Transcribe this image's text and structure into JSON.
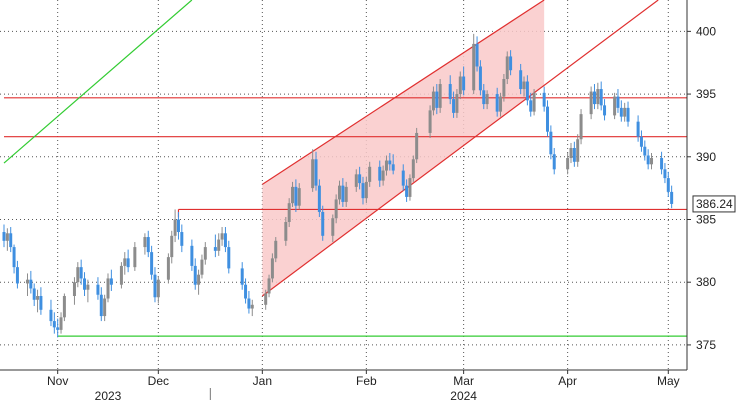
{
  "chart_data": {
    "type": "candlestick",
    "y_axis": {
      "position": "right",
      "ticks": [
        375,
        380,
        385,
        390,
        395,
        400
      ],
      "range": [
        373,
        402.5
      ]
    },
    "x_axis": {
      "months": [
        "Nov",
        "Dec",
        "Jan",
        "Feb",
        "Mar",
        "Apr",
        "May"
      ],
      "years": [
        "2023",
        "2024"
      ],
      "range": [
        "2023-10-16",
        "2024-05-03"
      ],
      "month_positions": [
        "2023-11-01",
        "2023-12-01",
        "2024-01-01",
        "2024-02-01",
        "2024-03-01",
        "2024-04-01",
        "2024-05-01"
      ],
      "year_positions": [
        "2023-11-16",
        "2024-03-01"
      ],
      "year_divider": "2024-01-01"
    },
    "price_label": {
      "value": "386.24",
      "y": 386.24
    },
    "horizontal_lines": [
      {
        "y": 394.7,
        "color": "#e03030",
        "from": "2023-10-16"
      },
      {
        "y": 391.6,
        "color": "#e03030",
        "from": "2023-10-16"
      },
      {
        "y": 385.8,
        "color": "#e03030",
        "from": "2023-12-07"
      },
      {
        "y": 375.7,
        "color": "#33cc33",
        "from": "2023-11-01"
      }
    ],
    "trend_line": {
      "color": "#33cc33",
      "points": [
        [
          "2023-10-16",
          389.5
        ],
        [
          "2023-12-11",
          402.5
        ]
      ]
    },
    "channel": {
      "fill": "#f9c9c9",
      "stroke": "#e03030",
      "upper": [
        [
          "2024-01-01",
          387.8
        ],
        [
          "2024-03-25",
          402.5
        ]
      ],
      "lower": [
        [
          "2024-01-01",
          378.9
        ],
        [
          "2024-04-28",
          402.5
        ]
      ],
      "shade_until": "2024-03-25"
    },
    "candles": [
      [
        "2023-10-16",
        384.0,
        384.6,
        382.8,
        383.3
      ],
      [
        "2023-10-17",
        383.3,
        384.3,
        382.5,
        383.9
      ],
      [
        "2023-10-18",
        383.9,
        384.4,
        382.4,
        382.8
      ],
      [
        "2023-10-19",
        382.8,
        383.0,
        380.7,
        381.2
      ],
      [
        "2023-10-20",
        381.2,
        381.7,
        379.5,
        379.9
      ],
      [
        "2023-10-23",
        379.9,
        380.7,
        378.9,
        380.2
      ],
      [
        "2023-10-24",
        380.2,
        380.9,
        379.1,
        379.5
      ],
      [
        "2023-10-25",
        379.5,
        379.9,
        378.1,
        378.6
      ],
      [
        "2023-10-26",
        378.6,
        379.4,
        377.6,
        378.9
      ],
      [
        "2023-10-27",
        378.9,
        379.6,
        377.4,
        377.8
      ],
      [
        "2023-10-30",
        377.8,
        378.6,
        376.5,
        376.9
      ],
      [
        "2023-10-31",
        376.9,
        377.6,
        375.9,
        376.4
      ],
      [
        "2023-11-01",
        376.4,
        377.1,
        375.6,
        376.2
      ],
      [
        "2023-11-02",
        376.2,
        377.6,
        375.9,
        377.2
      ],
      [
        "2023-11-03",
        377.2,
        379.1,
        376.9,
        378.9
      ],
      [
        "2023-11-06",
        378.9,
        380.4,
        378.2,
        380.0
      ],
      [
        "2023-11-07",
        380.0,
        381.6,
        379.6,
        381.2
      ],
      [
        "2023-11-08",
        381.2,
        381.8,
        379.8,
        380.3
      ],
      [
        "2023-11-09",
        380.3,
        380.8,
        378.9,
        379.4
      ],
      [
        "2023-11-10",
        379.4,
        380.2,
        378.4,
        379.8
      ],
      [
        "2023-11-13",
        379.8,
        380.4,
        378.6,
        379.0
      ],
      [
        "2023-11-14",
        379.0,
        379.6,
        376.9,
        377.3
      ],
      [
        "2023-11-15",
        377.3,
        379.0,
        376.9,
        378.7
      ],
      [
        "2023-11-16",
        378.7,
        380.7,
        378.4,
        380.3
      ],
      [
        "2023-11-17",
        380.3,
        381.0,
        379.3,
        379.8
      ],
      [
        "2023-11-20",
        379.8,
        381.6,
        379.5,
        381.3
      ],
      [
        "2023-11-21",
        381.3,
        382.4,
        380.6,
        381.9
      ],
      [
        "2023-11-22",
        381.9,
        382.6,
        380.8,
        381.2
      ],
      [
        "2023-11-24",
        381.2,
        383.2,
        380.9,
        382.8
      ],
      [
        "2023-11-27",
        382.8,
        383.9,
        382.2,
        383.6
      ],
      [
        "2023-11-28",
        383.6,
        384.1,
        382.0,
        382.4
      ],
      [
        "2023-11-29",
        382.4,
        382.9,
        380.2,
        380.6
      ],
      [
        "2023-11-30",
        380.6,
        381.2,
        378.4,
        378.8
      ],
      [
        "2023-12-01",
        378.8,
        380.5,
        378.3,
        380.2
      ],
      [
        "2023-12-04",
        380.2,
        382.3,
        379.9,
        382.0
      ],
      [
        "2023-12-05",
        382.0,
        384.1,
        381.5,
        383.7
      ],
      [
        "2023-12-06",
        383.7,
        385.8,
        383.2,
        385.0
      ],
      [
        "2023-12-07",
        385.0,
        385.6,
        383.4,
        384.0
      ],
      [
        "2023-12-08",
        384.0,
        384.6,
        382.4,
        382.9
      ],
      [
        "2023-12-11",
        382.9,
        383.4,
        380.9,
        381.3
      ],
      [
        "2023-12-12",
        381.3,
        381.9,
        379.4,
        379.8
      ],
      [
        "2023-12-13",
        379.8,
        381.0,
        379.0,
        380.6
      ],
      [
        "2023-12-14",
        380.6,
        382.2,
        380.3,
        381.8
      ],
      [
        "2023-12-15",
        381.8,
        383.2,
        381.4,
        382.8
      ],
      [
        "2023-12-18",
        382.8,
        383.8,
        382.0,
        382.5
      ],
      [
        "2023-12-19",
        382.5,
        383.9,
        382.1,
        383.4
      ],
      [
        "2023-12-20",
        383.4,
        384.4,
        382.9,
        383.9
      ],
      [
        "2023-12-21",
        383.9,
        384.4,
        382.4,
        382.8
      ],
      [
        "2023-12-22",
        382.8,
        383.3,
        380.7,
        381.1
      ],
      [
        "2023-12-26",
        381.1,
        381.6,
        379.4,
        379.8
      ],
      [
        "2023-12-27",
        379.8,
        380.3,
        378.3,
        378.7
      ],
      [
        "2023-12-28",
        378.7,
        379.3,
        377.5,
        377.9
      ],
      [
        "2023-12-29",
        377.9,
        378.6,
        377.3,
        378.2
      ],
      [
        "2024-01-02",
        378.2,
        379.4,
        377.8,
        379.1
      ],
      [
        "2024-01-03",
        379.1,
        380.6,
        378.8,
        380.3
      ],
      [
        "2024-01-04",
        380.3,
        382.3,
        380.0,
        381.9
      ],
      [
        "2024-01-05",
        381.9,
        383.6,
        381.6,
        383.3
      ],
      [
        "2024-01-08",
        383.3,
        385.2,
        382.9,
        384.8
      ],
      [
        "2024-01-09",
        384.8,
        386.7,
        384.4,
        386.3
      ],
      [
        "2024-01-10",
        386.3,
        388.0,
        386.0,
        387.6
      ],
      [
        "2024-01-11",
        387.6,
        388.2,
        385.6,
        386.1
      ],
      [
        "2024-01-12",
        386.1,
        387.9,
        385.8,
        387.5
      ],
      [
        "2024-01-16",
        387.5,
        390.6,
        387.2,
        389.8
      ],
      [
        "2024-01-17",
        389.8,
        390.4,
        387.3,
        387.7
      ],
      [
        "2024-01-18",
        387.7,
        388.2,
        385.2,
        385.6
      ],
      [
        "2024-01-19",
        385.6,
        386.1,
        383.3,
        383.7
      ],
      [
        "2024-01-22",
        383.7,
        385.4,
        383.2,
        385.1
      ],
      [
        "2024-01-23",
        385.1,
        387.0,
        384.7,
        386.6
      ],
      [
        "2024-01-24",
        386.6,
        388.1,
        386.2,
        387.7
      ],
      [
        "2024-01-25",
        387.7,
        388.3,
        386.0,
        386.4
      ],
      [
        "2024-01-26",
        386.4,
        388.0,
        386.0,
        387.6
      ],
      [
        "2024-01-29",
        387.6,
        389.0,
        387.2,
        388.6
      ],
      [
        "2024-01-30",
        388.6,
        389.2,
        387.4,
        387.9
      ],
      [
        "2024-01-31",
        387.9,
        388.4,
        386.2,
        386.7
      ],
      [
        "2024-02-01",
        386.7,
        388.4,
        386.3,
        388.0
      ],
      [
        "2024-02-02",
        388.0,
        389.6,
        387.6,
        389.2
      ],
      [
        "2024-02-05",
        389.2,
        389.7,
        387.6,
        388.1
      ],
      [
        "2024-02-06",
        388.1,
        389.3,
        387.7,
        388.9
      ],
      [
        "2024-02-07",
        388.9,
        390.1,
        388.5,
        389.7
      ],
      [
        "2024-02-08",
        389.7,
        390.3,
        388.9,
        389.4
      ],
      [
        "2024-02-09",
        389.4,
        390.2,
        388.6,
        388.9
      ],
      [
        "2024-02-12",
        388.9,
        389.4,
        387.3,
        387.7
      ],
      [
        "2024-02-13",
        387.7,
        388.2,
        386.4,
        386.8
      ],
      [
        "2024-02-14",
        386.8,
        388.6,
        386.5,
        388.3
      ],
      [
        "2024-02-15",
        388.3,
        390.1,
        388.0,
        389.8
      ],
      [
        "2024-02-16",
        389.8,
        392.3,
        389.5,
        391.9
      ],
      [
        "2024-02-20",
        391.9,
        394.1,
        391.5,
        393.7
      ],
      [
        "2024-02-21",
        393.7,
        395.6,
        393.3,
        395.2
      ],
      [
        "2024-02-22",
        395.2,
        395.8,
        393.4,
        393.9
      ],
      [
        "2024-02-23",
        393.9,
        396.2,
        393.5,
        395.8
      ],
      [
        "2024-02-26",
        395.8,
        396.5,
        394.2,
        394.6
      ],
      [
        "2024-02-27",
        394.6,
        395.2,
        393.1,
        393.5
      ],
      [
        "2024-02-28",
        393.5,
        395.4,
        393.1,
        395.0
      ],
      [
        "2024-02-29",
        395.0,
        396.8,
        394.6,
        396.4
      ],
      [
        "2024-03-01",
        396.4,
        397.2,
        394.9,
        395.3
      ],
      [
        "2024-03-04",
        395.3,
        399.8,
        395.0,
        399.0
      ],
      [
        "2024-03-05",
        399.0,
        399.6,
        396.8,
        397.2
      ],
      [
        "2024-03-06",
        397.2,
        397.7,
        394.9,
        395.3
      ],
      [
        "2024-03-07",
        395.3,
        395.8,
        393.8,
        394.2
      ],
      [
        "2024-03-08",
        394.2,
        395.3,
        393.8,
        395.0
      ],
      [
        "2024-03-11",
        395.0,
        395.5,
        393.2,
        393.6
      ],
      [
        "2024-03-12",
        393.6,
        395.1,
        393.2,
        394.8
      ],
      [
        "2024-03-13",
        394.8,
        396.6,
        394.4,
        396.2
      ],
      [
        "2024-03-14",
        396.2,
        398.4,
        395.8,
        398.0
      ],
      [
        "2024-03-15",
        398.0,
        398.5,
        396.5,
        396.9
      ],
      [
        "2024-03-18",
        396.9,
        397.4,
        395.0,
        395.4
      ],
      [
        "2024-03-19",
        395.4,
        396.4,
        394.8,
        396.0
      ],
      [
        "2024-03-20",
        396.0,
        396.5,
        394.1,
        394.5
      ],
      [
        "2024-03-21",
        394.5,
        395.1,
        393.2,
        393.6
      ],
      [
        "2024-03-22",
        393.6,
        395.4,
        393.3,
        395.1
      ],
      [
        "2024-03-25",
        395.1,
        395.6,
        393.6,
        394.0
      ],
      [
        "2024-03-26",
        394.0,
        394.5,
        391.6,
        392.0
      ],
      [
        "2024-03-27",
        392.0,
        392.5,
        389.8,
        390.2
      ],
      [
        "2024-03-28",
        390.2,
        390.7,
        388.6,
        389.0
      ],
      [
        "2024-04-01",
        389.0,
        390.3,
        388.6,
        389.9
      ],
      [
        "2024-04-02",
        389.9,
        391.1,
        389.5,
        390.7
      ],
      [
        "2024-04-03",
        390.7,
        391.2,
        389.2,
        389.6
      ],
      [
        "2024-04-04",
        389.6,
        391.8,
        389.2,
        391.4
      ],
      [
        "2024-04-05",
        391.4,
        393.8,
        391.0,
        393.4
      ],
      [
        "2024-04-08",
        393.4,
        395.6,
        393.0,
        395.2
      ],
      [
        "2024-04-09",
        395.2,
        395.8,
        393.8,
        394.2
      ],
      [
        "2024-04-10",
        394.2,
        395.9,
        393.8,
        395.4
      ],
      [
        "2024-04-11",
        395.4,
        396.0,
        393.7,
        394.1
      ],
      [
        "2024-04-12",
        394.1,
        394.6,
        392.9,
        393.3
      ],
      [
        "2024-04-15",
        393.3,
        395.1,
        393.0,
        394.8
      ],
      [
        "2024-04-16",
        394.8,
        395.4,
        393.5,
        393.9
      ],
      [
        "2024-04-17",
        393.9,
        394.5,
        392.8,
        393.2
      ],
      [
        "2024-04-18",
        393.2,
        394.3,
        392.8,
        393.9
      ],
      [
        "2024-04-19",
        393.9,
        394.4,
        392.4,
        392.8
      ],
      [
        "2024-04-22",
        392.8,
        393.3,
        391.2,
        391.6
      ],
      [
        "2024-04-23",
        391.6,
        392.1,
        390.4,
        390.8
      ],
      [
        "2024-04-24",
        390.8,
        391.3,
        389.7,
        390.1
      ],
      [
        "2024-04-25",
        390.1,
        390.6,
        389.0,
        389.4
      ],
      [
        "2024-04-26",
        389.4,
        390.3,
        389.0,
        389.9
      ],
      [
        "2024-04-29",
        389.9,
        390.4,
        388.6,
        389.0
      ],
      [
        "2024-04-30",
        389.0,
        389.5,
        387.9,
        388.3
      ],
      [
        "2024-05-01",
        388.3,
        388.8,
        386.8,
        387.2
      ],
      [
        "2024-05-02",
        387.2,
        387.7,
        385.9,
        386.24
      ]
    ]
  }
}
